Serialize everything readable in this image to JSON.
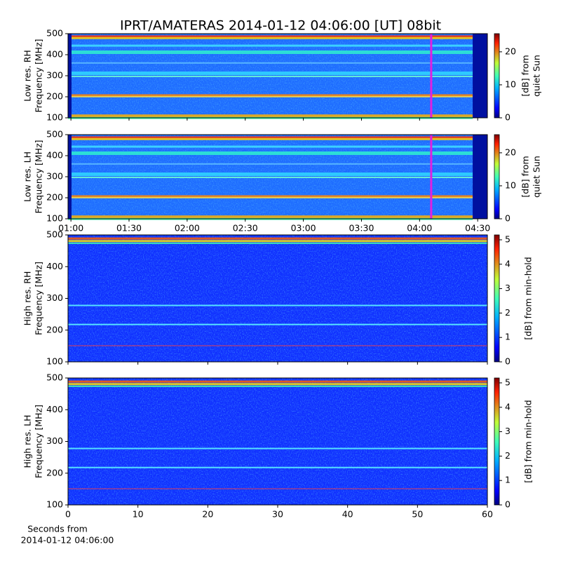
{
  "title": "IPRT/AMATERAS 2014-01-12 04:06:00 [UT]   08bit",
  "chart_data": [
    {
      "type": "spectrogram",
      "ylabel": [
        "Low res. RH",
        "Frequency [MHz]"
      ],
      "ylim": [
        100,
        500
      ],
      "yticks": [
        100,
        200,
        300,
        400,
        500
      ],
      "xlim": [
        58.5,
        275
      ],
      "xticks": [
        60,
        90,
        120,
        150,
        180,
        210,
        240,
        270
      ],
      "cursor": {
        "x": 246,
        "color": "#e020e0"
      },
      "colorbar": {
        "label": [
          "[dB] from",
          "quiet Sun"
        ],
        "lim": [
          0,
          25.5
        ],
        "ticks": [
          0,
          10,
          20
        ]
      }
    },
    {
      "type": "spectrogram",
      "ylabel": [
        "Low res. LH",
        "Frequency [MHz]"
      ],
      "ylim": [
        100,
        500
      ],
      "yticks": [
        100,
        200,
        300,
        400,
        500
      ],
      "xlim": [
        58.5,
        275
      ],
      "xticks": [
        {
          "value": 60,
          "label": "01:00"
        },
        {
          "value": 90,
          "label": "01:30"
        },
        {
          "value": 120,
          "label": "02:00"
        },
        {
          "value": 150,
          "label": "02:30"
        },
        {
          "value": 180,
          "label": "03:00"
        },
        {
          "value": 210,
          "label": "03:30"
        },
        {
          "value": 240,
          "label": "04:00"
        },
        {
          "value": 270,
          "label": "04:30"
        }
      ],
      "cursor": {
        "x": 246,
        "color": "#e020e0"
      },
      "colorbar": {
        "label": [
          "[dB] from",
          "quiet Sun"
        ],
        "lim": [
          0,
          25.5
        ],
        "ticks": [
          0,
          10,
          20
        ]
      }
    },
    {
      "type": "spectrogram",
      "ylabel": [
        "High res. RH",
        "Frequency [MHz]"
      ],
      "ylim": [
        100,
        500
      ],
      "yticks": [
        100,
        200,
        300,
        400,
        500
      ],
      "xlim": [
        0,
        60
      ],
      "xticks": [
        0,
        10,
        20,
        30,
        40,
        50,
        60
      ],
      "colorbar": {
        "label": [
          "[dB] from min-hold"
        ],
        "lim": [
          0,
          5.2
        ],
        "ticks": [
          0,
          1,
          2,
          3,
          4,
          5
        ]
      }
    },
    {
      "type": "spectrogram",
      "ylabel": [
        "High res. LH",
        "Frequency [MHz]"
      ],
      "ylim": [
        100,
        500
      ],
      "yticks": [
        100,
        200,
        300,
        400,
        500
      ],
      "xlim": [
        0,
        60
      ],
      "xticks": [
        0,
        10,
        20,
        30,
        40,
        50,
        60
      ],
      "xlabel": [
        "Seconds from",
        "2014-01-12 04:06:00"
      ],
      "colorbar": {
        "label": [
          "[dB] from min-hold"
        ],
        "lim": [
          0,
          5.2
        ],
        "ticks": [
          0,
          1,
          2,
          3,
          4,
          5
        ]
      }
    }
  ]
}
